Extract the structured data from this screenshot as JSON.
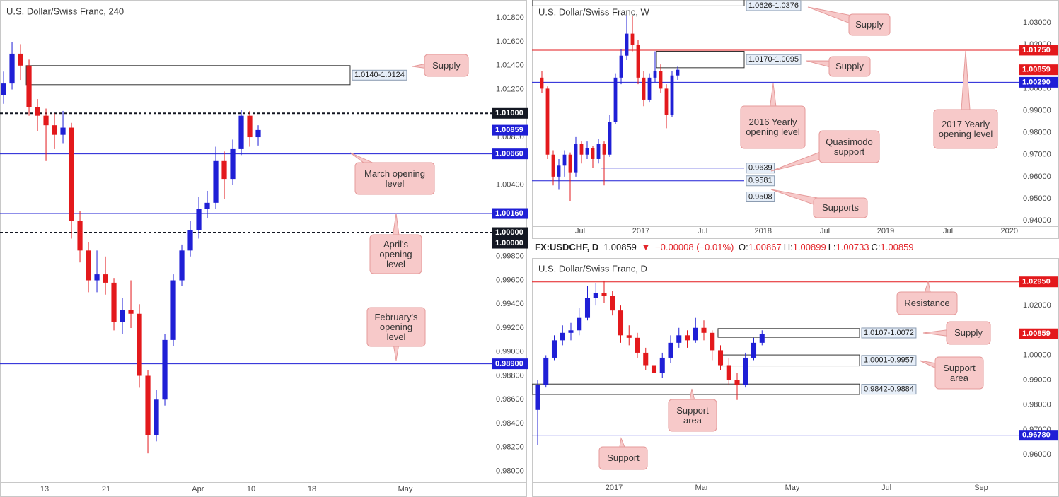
{
  "header": {
    "symbol": "FX:USDCHF, D",
    "last": "1.00859",
    "arrow": "▼",
    "change": "−0.00008 (−0.01%)",
    "ohlc": [
      {
        "label": "O:",
        "value": "1.00867"
      },
      {
        "label": "H:",
        "value": "1.00899"
      },
      {
        "label": "L:",
        "value": "1.00733"
      },
      {
        "label": "C:",
        "value": "1.00859"
      }
    ]
  },
  "chart_data": [
    {
      "type": "candlestick",
      "title": "U.S. Dollar/Swiss Franc, 240",
      "up_color": "#1f1fd6",
      "down_color": "#e3191c",
      "xlim": [
        -0.42,
        57.5
      ],
      "ylim": [
        0.9792,
        1.0195
      ],
      "xticks": [
        {
          "value": 4.83,
          "label": "13"
        },
        {
          "value": 12.08,
          "label": "21"
        },
        {
          "value": 22.9,
          "label": "Apr"
        },
        {
          "value": 29.17,
          "label": "10"
        },
        {
          "value": 36.33,
          "label": "18"
        },
        {
          "value": 47.33,
          "label": "May"
        }
      ],
      "yticks": [
        {
          "value": 1.018,
          "label": "1.01800"
        },
        {
          "value": 1.016,
          "label": "1.01600"
        },
        {
          "value": 1.014,
          "label": "1.01400"
        },
        {
          "value": 1.012,
          "label": "1.01200"
        },
        {
          "value": 1.008,
          "label": "1.00800"
        },
        {
          "value": 1.004,
          "label": "1.00400"
        },
        {
          "value": 0.998,
          "label": "0.99800"
        },
        {
          "value": 0.996,
          "label": "0.99600"
        },
        {
          "value": 0.994,
          "label": "0.99400"
        },
        {
          "value": 0.992,
          "label": "0.99200"
        },
        {
          "value": 0.99,
          "label": "0.99000"
        },
        {
          "value": 0.988,
          "label": "0.98800"
        },
        {
          "value": 0.986,
          "label": "0.98600"
        },
        {
          "value": 0.984,
          "label": "0.98400"
        },
        {
          "value": 0.982,
          "label": "0.98200"
        },
        {
          "value": 0.98,
          "label": "0.98000"
        }
      ],
      "ohlc": {
        "open": [
          1.0115,
          1.0125,
          1.015,
          1.014,
          1.0105,
          1.0098,
          1.009,
          1.0082,
          1.0088,
          1.001,
          0.9985,
          0.996,
          0.9965,
          0.9958,
          0.9925,
          0.9935,
          0.9932,
          0.988,
          0.983,
          0.986,
          0.991,
          0.996,
          0.9985,
          1.0002,
          1.002,
          1.0025,
          1.006,
          1.0045,
          1.007,
          1.0098,
          1.008
        ],
        "high": [
          1.0135,
          1.016,
          1.0158,
          1.0145,
          1.0112,
          1.0104,
          1.01,
          1.0102,
          1.0092,
          1.0018,
          0.9992,
          0.9985,
          0.998,
          0.9962,
          0.9945,
          0.996,
          0.994,
          0.9885,
          0.9868,
          0.9915,
          0.9965,
          0.999,
          1.001,
          1.003,
          1.0035,
          1.0072,
          1.0068,
          1.0078,
          1.0103,
          1.0102,
          1.009
        ],
        "low": [
          1.0108,
          1.012,
          1.0128,
          1.0098,
          1.0085,
          1.006,
          1.007,
          1.0075,
          0.9995,
          0.9975,
          0.995,
          0.995,
          0.9948,
          0.9918,
          0.9915,
          0.992,
          0.987,
          0.9815,
          0.9825,
          0.9855,
          0.9905,
          0.9955,
          0.998,
          0.9995,
          1.0012,
          1.002,
          1.0028,
          1.004,
          1.0065,
          1.0072,
          1.0073
        ],
        "close": [
          1.0125,
          1.015,
          1.014,
          1.0105,
          1.0098,
          1.009,
          1.0082,
          1.0088,
          1.001,
          0.9985,
          0.996,
          0.9965,
          0.9958,
          0.9925,
          0.9935,
          0.9932,
          0.988,
          0.983,
          0.986,
          0.991,
          0.996,
          0.9985,
          1.0002,
          1.002,
          1.0025,
          1.006,
          1.0045,
          1.007,
          1.0098,
          1.008,
          1.0086
        ]
      },
      "levels": [
        {
          "value": 1.01,
          "label": "1.01000",
          "color": "#131722",
          "line": true,
          "dashed": true
        },
        {
          "value": 1.00859,
          "label": "1.00859",
          "color": "#1f1fd6",
          "line": false
        },
        {
          "value": 1.0066,
          "label": "1.00660",
          "color": "#1f1fd6",
          "line": true
        },
        {
          "value": 1.0016,
          "label": "1.00160",
          "color": "#1f1fd6",
          "line": true
        },
        {
          "value": 1.0,
          "label": "1.00000",
          "color": "#131722",
          "line": true,
          "dashed": true
        },
        {
          "value": 1.0,
          "label": "1.00000",
          "color": "#131722",
          "line": false
        },
        {
          "value": 0.989,
          "label": "0.98900",
          "color": "#1f1fd6",
          "line": true
        }
      ],
      "zones": [
        {
          "high": 1.014,
          "low": 1.0124,
          "x": [
            2.67,
            40.83
          ],
          "label": "1.0140-1.0124"
        }
      ],
      "callouts": [
        "Supply",
        "March opening level",
        "April's opening level",
        "February's opening level"
      ]
    },
    {
      "type": "candlestick",
      "title": "U.S. Dollar/Swiss Franc, W",
      "up_color": "#1f1fd6",
      "down_color": "#e3191c",
      "xlim": [
        -1.75,
        84.25
      ],
      "ylim": [
        0.9381,
        1.0403
      ],
      "xticks": [
        {
          "value": 6.75,
          "label": "Jul"
        },
        {
          "value": 17.5,
          "label": "2017"
        },
        {
          "value": 28.4,
          "label": "Jul"
        },
        {
          "value": 39.1,
          "label": "2018"
        },
        {
          "value": 50,
          "label": "Jul"
        },
        {
          "value": 60.75,
          "label": "2019"
        },
        {
          "value": 71.75,
          "label": "Jul"
        },
        {
          "value": 82.6,
          "label": "2020"
        }
      ],
      "yticks": [
        {
          "value": 1.03,
          "label": "1.03000"
        },
        {
          "value": 1.02,
          "label": "1.02000"
        },
        {
          "value": 1.0,
          "label": "1.00000"
        },
        {
          "value": 0.99,
          "label": "0.99000"
        },
        {
          "value": 0.98,
          "label": "0.98000"
        },
        {
          "value": 0.97,
          "label": "0.97000"
        },
        {
          "value": 0.96,
          "label": "0.96000"
        },
        {
          "value": 0.95,
          "label": "0.95000"
        },
        {
          "value": 0.94,
          "label": "0.94000"
        }
      ],
      "ohlc": {
        "open": [
          1.005,
          1.0,
          0.97,
          0.96,
          0.965,
          0.97,
          0.962,
          0.975,
          0.97,
          0.973,
          0.968,
          0.975,
          0.97,
          0.985,
          1.005,
          1.015,
          1.025,
          1.02,
          1.005,
          0.995,
          1.005,
          1.008,
          1.0,
          0.988,
          1.006
        ],
        "high": [
          1.008,
          1.001,
          0.972,
          0.968,
          0.972,
          0.971,
          0.978,
          0.976,
          0.976,
          0.974,
          0.977,
          0.976,
          0.988,
          1.007,
          1.018,
          1.034,
          1.033,
          1.022,
          1.008,
          1.007,
          1.017,
          1.011,
          1.002,
          1.008,
          1.01
        ],
        "low": [
          0.998,
          0.968,
          0.956,
          0.954,
          0.96,
          0.949,
          0.96,
          0.966,
          0.968,
          0.964,
          0.966,
          0.956,
          0.969,
          0.984,
          1.002,
          1.013,
          1.017,
          1.002,
          0.992,
          0.994,
          1.003,
          0.998,
          0.982,
          0.987,
          1.004
        ],
        "close": [
          1.0,
          0.97,
          0.96,
          0.965,
          0.97,
          0.962,
          0.975,
          0.97,
          0.973,
          0.968,
          0.975,
          0.97,
          0.985,
          1.005,
          1.015,
          1.025,
          1.02,
          1.005,
          0.995,
          1.005,
          1.008,
          1.0,
          0.988,
          1.006,
          1.0086
        ]
      },
      "levels": [
        {
          "value": 1.0175,
          "label": "1.01750",
          "color": "#e3191c",
          "line": true
        },
        {
          "value": 1.00859,
          "label": "1.00859",
          "color": "#e3191c",
          "line": false
        },
        {
          "value": 1.0029,
          "label": "1.00290",
          "color": "#1f1fd6",
          "line": true
        }
      ],
      "zones": [
        {
          "high": 1.0626,
          "low": 1.0376,
          "x": [
            -1.75,
            35.75
          ],
          "label": "1.0626-1.0376"
        },
        {
          "high": 1.017,
          "low": 1.0095,
          "x": [
            20.25,
            35.75
          ],
          "label": "1.0170-1.0095"
        }
      ],
      "support_lines": [
        {
          "value": 0.9639,
          "label": "0.9639",
          "x": [
            10.5,
            35.75
          ]
        },
        {
          "value": 0.9581,
          "label": "0.9581",
          "x": [
            -1.75,
            35.75
          ]
        },
        {
          "value": 0.9508,
          "label": "0.9508",
          "x": [
            -1.75,
            35.75
          ]
        }
      ],
      "callouts": [
        "Supply",
        "Supply",
        "2016 Yearly opening level",
        "2017 Yearly opening level",
        "Quasimodo support",
        "Supports"
      ]
    },
    {
      "type": "candlestick",
      "title": "U.S. Dollar/Swiss Franc, D",
      "up_color": "#1f1fd6",
      "down_color": "#e3191c",
      "xlim": [
        -0.68,
        57.87
      ],
      "ylim": [
        0.9495,
        1.0371
      ],
      "xticks": [
        {
          "value": 9.19,
          "label": "2017"
        },
        {
          "value": 19.74,
          "label": "Mar"
        },
        {
          "value": 30.64,
          "label": "May"
        },
        {
          "value": 41.96,
          "label": "Jul"
        },
        {
          "value": 53.36,
          "label": "Sep"
        }
      ],
      "yticks": [
        {
          "value": 1.02,
          "label": "1.02000"
        },
        {
          "value": 1.0,
          "label": "1.00000"
        },
        {
          "value": 0.99,
          "label": "0.99000"
        },
        {
          "value": 0.98,
          "label": "0.98000"
        },
        {
          "value": 0.97,
          "label": "0.97000"
        },
        {
          "value": 0.96,
          "label": "0.96000"
        }
      ],
      "ohlc": {
        "open": [
          0.978,
          0.988,
          0.999,
          1.006,
          1.009,
          1.01,
          1.015,
          1.023,
          1.025,
          1.024,
          1.018,
          1.008,
          1.007,
          1.001,
          0.996,
          0.993,
          0.999,
          1.005,
          1.008,
          1.006,
          1.011,
          1.009,
          1.002,
          0.996,
          0.99,
          0.988,
          0.999,
          1.005
        ],
        "high": [
          0.99,
          1.0,
          1.008,
          1.012,
          1.013,
          1.019,
          1.028,
          1.029,
          1.03,
          1.026,
          1.02,
          1.012,
          1.009,
          1.003,
          0.999,
          1.001,
          1.008,
          1.011,
          1.01,
          1.015,
          1.014,
          1.01,
          1.004,
          0.999,
          0.993,
          1.001,
          1.007,
          1.01
        ],
        "low": [
          0.964,
          0.987,
          0.998,
          1.004,
          1.006,
          1.008,
          1.014,
          1.02,
          1.021,
          1.016,
          1.005,
          1.004,
          0.999,
          0.994,
          0.988,
          0.991,
          0.997,
          1.003,
          1.003,
          1.005,
          1.006,
          0.998,
          0.994,
          0.988,
          0.982,
          0.987,
          0.998,
          1.004
        ],
        "close": [
          0.988,
          0.999,
          1.006,
          1.009,
          1.01,
          1.015,
          1.023,
          1.025,
          1.024,
          1.018,
          1.008,
          1.007,
          1.001,
          0.996,
          0.993,
          0.999,
          1.005,
          1.008,
          1.006,
          1.011,
          1.009,
          1.002,
          0.996,
          0.99,
          0.988,
          0.999,
          1.005,
          1.0086
        ]
      },
      "levels": [
        {
          "value": 1.0295,
          "label": "1.02950",
          "color": "#e3191c",
          "line": true
        },
        {
          "value": 1.00859,
          "label": "1.00859",
          "color": "#e3191c",
          "line": false
        },
        {
          "value": 0.9678,
          "label": "0.96780",
          "color": "#1f1fd6",
          "line": true
        }
      ],
      "zones": [
        {
          "high": 1.0107,
          "low": 1.0072,
          "x": [
            21.7,
            38.72
          ],
          "label": "1.0107-1.0072"
        },
        {
          "high": 1.0001,
          "low": 0.9957,
          "x": [
            22.13,
            38.72
          ],
          "label": "1.0001-0.9957"
        },
        {
          "high": 0.9884,
          "low": 0.9842,
          "x": [
            -0.68,
            38.72
          ],
          "label": "0.9842-0.9884"
        }
      ],
      "callouts": [
        "Resistance",
        "Supply",
        "Support area",
        "Support area",
        "Support"
      ]
    }
  ]
}
